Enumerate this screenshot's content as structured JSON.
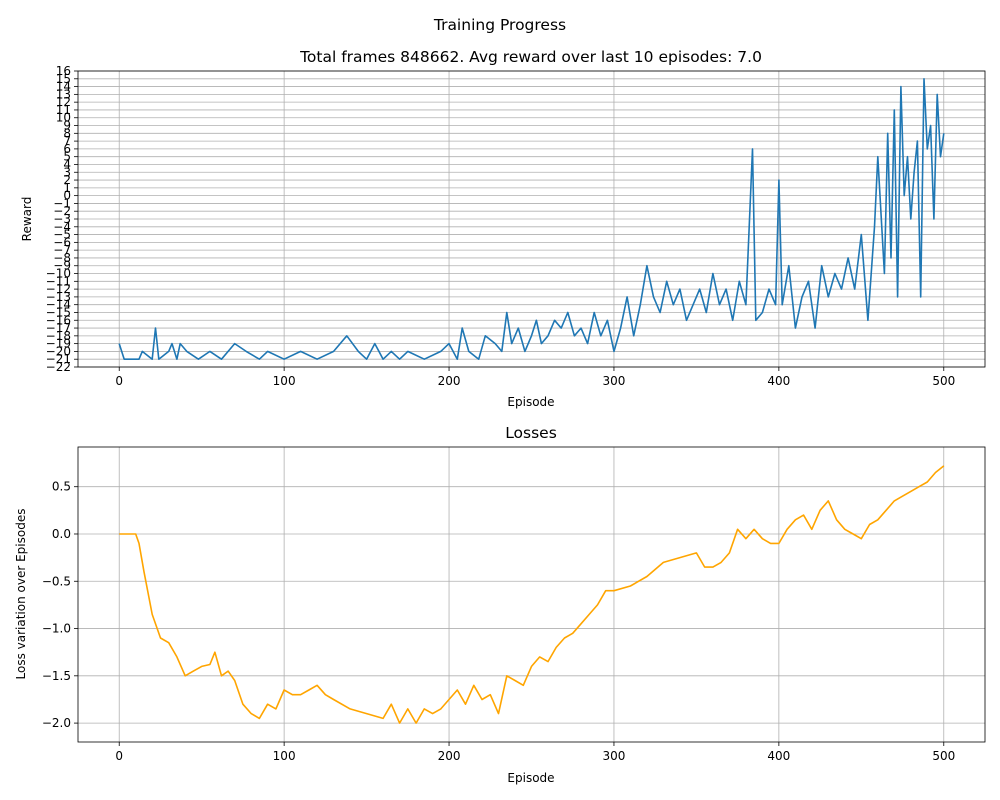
{
  "figure": {
    "suptitle": "Training Progress"
  },
  "chart_data": [
    {
      "type": "line",
      "title": "Total frames 848662. Avg reward over last 10 episodes: 7.0",
      "xlabel": "Episode",
      "ylabel": "Reward",
      "xlim": [
        -25,
        525
      ],
      "ylim": [
        -22,
        16
      ],
      "xticks": [
        0,
        100,
        200,
        300,
        400,
        500
      ],
      "yticks": [
        -22,
        -21,
        -20,
        -19,
        -18,
        -17,
        -16,
        -15,
        -14,
        -13,
        -12,
        -11,
        -10,
        -9,
        -8,
        -7,
        -6,
        -5,
        -4,
        -3,
        -2,
        -1,
        0,
        1,
        2,
        3,
        4,
        5,
        6,
        7,
        8,
        9,
        10,
        11,
        12,
        13,
        14,
        15,
        16
      ],
      "grid": true,
      "color": "#1f77b4",
      "series": [
        {
          "x": [
            0,
            3,
            12,
            14,
            20,
            22,
            24,
            30,
            32,
            35,
            37,
            41,
            48,
            55,
            62,
            70,
            77,
            85,
            90,
            100,
            110,
            120,
            130,
            138,
            145,
            150,
            155,
            160,
            165,
            170,
            175,
            185,
            195,
            200,
            205,
            208,
            212,
            218,
            222,
            228,
            232,
            235,
            238,
            242,
            246,
            250,
            253,
            256,
            260,
            264,
            268,
            272,
            276,
            280,
            284,
            288,
            292,
            296,
            300,
            304,
            308,
            312,
            316,
            320,
            324,
            328,
            332,
            336,
            340,
            344,
            348,
            352,
            356,
            360,
            364,
            368,
            372,
            376,
            380,
            384,
            386,
            390,
            394,
            398,
            400,
            402,
            406,
            410,
            414,
            418,
            422,
            426,
            430,
            434,
            438,
            442,
            446,
            450,
            454,
            458,
            460,
            464,
            466,
            468,
            470,
            472,
            474,
            476,
            478,
            480,
            482,
            484,
            486,
            488,
            490,
            492,
            494,
            496,
            498,
            500
          ],
          "y": [
            -19,
            -21,
            -21,
            -20,
            -21,
            -17,
            -21,
            -20,
            -19,
            -21,
            -19,
            -20,
            -21,
            -20,
            -21,
            -19,
            -20,
            -21,
            -20,
            -21,
            -20,
            -21,
            -20,
            -18,
            -20,
            -21,
            -19,
            -21,
            -20,
            -21,
            -20,
            -21,
            -20,
            -19,
            -21,
            -17,
            -20,
            -21,
            -18,
            -19,
            -20,
            -15,
            -19,
            -17,
            -20,
            -18,
            -16,
            -19,
            -18,
            -16,
            -17,
            -15,
            -18,
            -17,
            -19,
            -15,
            -18,
            -16,
            -20,
            -17,
            -13,
            -18,
            -14,
            -9,
            -13,
            -15,
            -11,
            -14,
            -12,
            -16,
            -14,
            -12,
            -15,
            -10,
            -14,
            -12,
            -16,
            -11,
            -14,
            6,
            -16,
            -15,
            -12,
            -14,
            2,
            -14,
            -9,
            -17,
            -13,
            -11,
            -17,
            -9,
            -13,
            -10,
            -12,
            -8,
            -12,
            -5,
            -16,
            -4,
            5,
            -10,
            8,
            -8,
            11,
            -13,
            14,
            0,
            5,
            -3,
            3,
            7,
            -13,
            15,
            6,
            9,
            -3,
            13,
            5,
            8
          ]
        }
      ]
    },
    {
      "type": "line",
      "title": "Losses",
      "xlabel": "Episode",
      "ylabel": "Loss variation over Episodes",
      "xlim": [
        -25,
        525
      ],
      "ylim": [
        -2.2,
        0.92
      ],
      "xticks": [
        0,
        100,
        200,
        300,
        400,
        500
      ],
      "yticks": [
        -2.0,
        -1.5,
        -1.0,
        -0.5,
        0.0,
        0.5
      ],
      "grid": true,
      "color": "#ffa500",
      "series": [
        {
          "x": [
            0,
            5,
            10,
            12,
            15,
            20,
            25,
            30,
            35,
            40,
            45,
            50,
            55,
            58,
            62,
            66,
            70,
            75,
            80,
            85,
            90,
            95,
            100,
            105,
            110,
            115,
            120,
            125,
            130,
            140,
            150,
            160,
            165,
            170,
            175,
            180,
            185,
            190,
            195,
            200,
            205,
            210,
            215,
            220,
            225,
            230,
            235,
            240,
            245,
            250,
            255,
            260,
            265,
            270,
            275,
            280,
            285,
            290,
            295,
            300,
            310,
            320,
            330,
            340,
            350,
            355,
            360,
            365,
            370,
            375,
            380,
            385,
            390,
            395,
            400,
            405,
            410,
            415,
            420,
            425,
            430,
            435,
            440,
            445,
            450,
            455,
            460,
            465,
            470,
            475,
            480,
            485,
            490,
            495,
            500
          ],
          "y": [
            0.0,
            0.0,
            0.0,
            -0.1,
            -0.4,
            -0.85,
            -1.1,
            -1.15,
            -1.3,
            -1.5,
            -1.45,
            -1.4,
            -1.38,
            -1.25,
            -1.5,
            -1.45,
            -1.55,
            -1.8,
            -1.9,
            -1.95,
            -1.8,
            -1.85,
            -1.65,
            -1.7,
            -1.7,
            -1.65,
            -1.6,
            -1.7,
            -1.75,
            -1.85,
            -1.9,
            -1.95,
            -1.8,
            -2.0,
            -1.85,
            -2.0,
            -1.85,
            -1.9,
            -1.85,
            -1.75,
            -1.65,
            -1.8,
            -1.6,
            -1.75,
            -1.7,
            -1.9,
            -1.5,
            -1.55,
            -1.6,
            -1.4,
            -1.3,
            -1.35,
            -1.2,
            -1.1,
            -1.05,
            -0.95,
            -0.85,
            -0.75,
            -0.6,
            -0.6,
            -0.55,
            -0.45,
            -0.3,
            -0.25,
            -0.2,
            -0.35,
            -0.35,
            -0.3,
            -0.2,
            0.05,
            -0.05,
            0.05,
            -0.05,
            -0.1,
            -0.1,
            0.05,
            0.15,
            0.2,
            0.05,
            0.25,
            0.35,
            0.15,
            0.05,
            0.0,
            -0.05,
            0.1,
            0.15,
            0.25,
            0.35,
            0.4,
            0.45,
            0.5,
            0.55,
            0.65,
            0.72
          ]
        }
      ]
    }
  ]
}
